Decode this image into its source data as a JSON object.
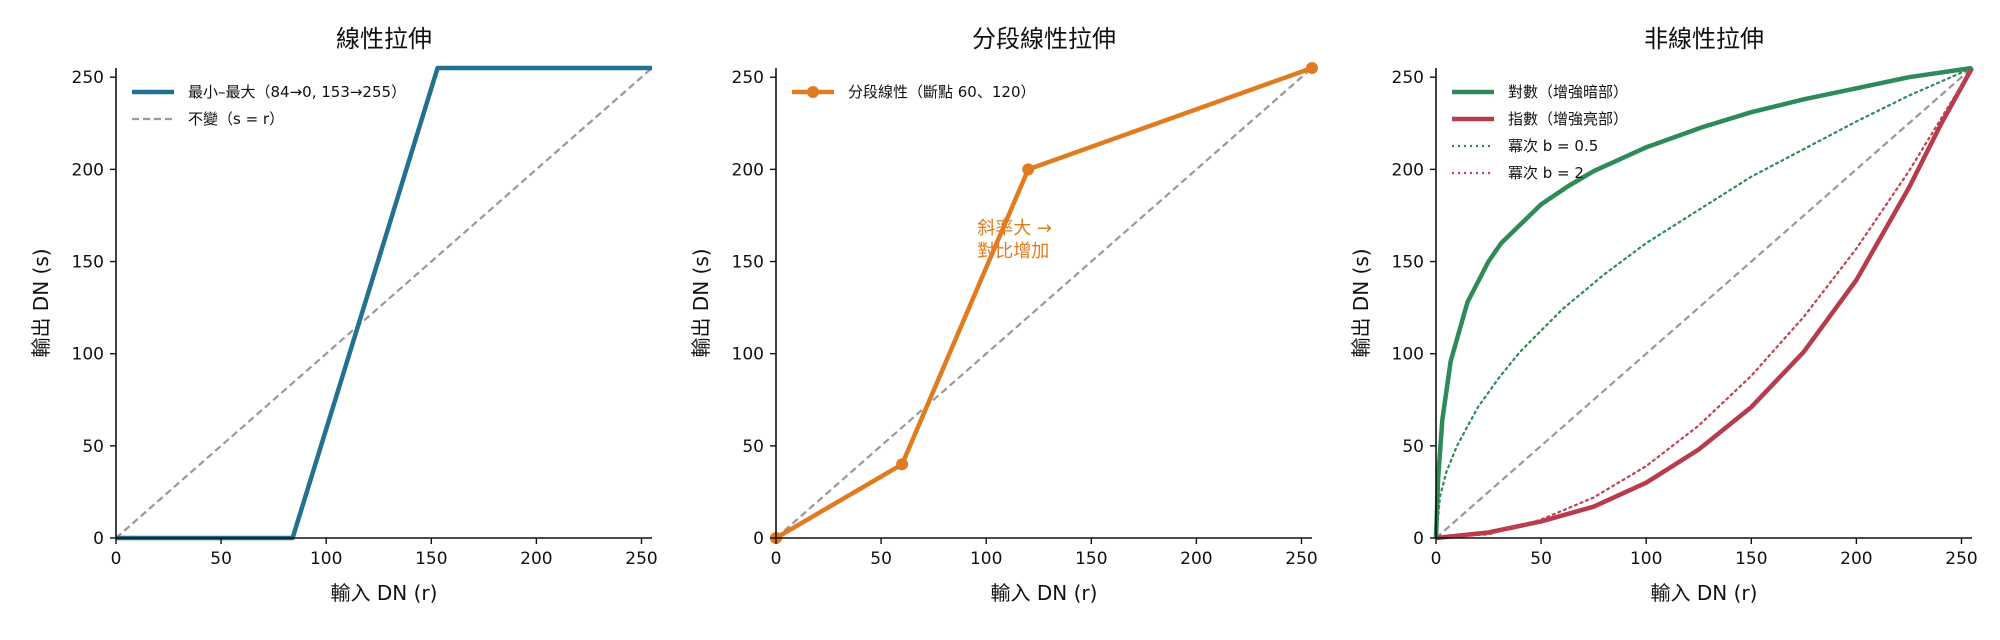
{
  "chart_data": [
    {
      "type": "line",
      "title": "線性拉伸",
      "xlabel": "輸入 DN (r)",
      "ylabel": "輸出 DN (s)",
      "xlim": [
        0,
        255
      ],
      "ylim": [
        0,
        255
      ],
      "xticks": [
        "0",
        "50",
        "100",
        "150",
        "200",
        "250"
      ],
      "yticks": [
        "0",
        "50",
        "100",
        "150",
        "200",
        "250"
      ],
      "legend": "top-left",
      "grid": false,
      "series": [
        {
          "name": "最小–最大（84→0, 153→255）",
          "color": "#21718f",
          "style": "solid",
          "points": [
            [
              0,
              0
            ],
            [
              84,
              0
            ],
            [
              153,
              255
            ],
            [
              255,
              255
            ]
          ]
        },
        {
          "name": "不變（s = r）",
          "color": "#999999",
          "style": "dashed",
          "points": [
            [
              0,
              0
            ],
            [
              255,
              255
            ]
          ]
        }
      ]
    },
    {
      "type": "line",
      "title": "分段線性拉伸",
      "xlabel": "輸入 DN (r)",
      "ylabel": "輸出 DN (s)",
      "xlim": [
        0,
        255
      ],
      "ylim": [
        0,
        255
      ],
      "xticks": [
        "0",
        "50",
        "100",
        "150",
        "200",
        "250"
      ],
      "yticks": [
        "0",
        "50",
        "100",
        "150",
        "200",
        "250"
      ],
      "legend": "top-left",
      "grid": false,
      "series": [
        {
          "name": "分段線性（斷點 60、120）",
          "color": "#e07b22",
          "style": "solid",
          "markers": true,
          "points": [
            [
              0,
              0
            ],
            [
              60,
              40
            ],
            [
              120,
              200
            ],
            [
              255,
              255
            ]
          ]
        },
        {
          "color": "#999999",
          "style": "dashed",
          "points": [
            [
              0,
              0
            ],
            [
              255,
              255
            ]
          ]
        }
      ],
      "annotation": {
        "lines": [
          "斜率大 →",
          "對比增加"
        ],
        "color": "#e07b22",
        "x": 110,
        "y": 165
      }
    },
    {
      "type": "line",
      "title": "非線性拉伸",
      "xlabel": "輸入 DN (r)",
      "ylabel": "輸出 DN (s)",
      "xlim": [
        0,
        255
      ],
      "ylim": [
        0,
        255
      ],
      "xticks": [
        "0",
        "50",
        "100",
        "150",
        "200",
        "250"
      ],
      "yticks": [
        "0",
        "50",
        "100",
        "150",
        "200",
        "250"
      ],
      "legend": "top-left",
      "grid": false,
      "series": [
        {
          "name": "對數（增強暗部）",
          "color": "#2e8b57",
          "style": "solid",
          "points": [
            [
              0,
              0
            ],
            [
              1,
              32
            ],
            [
              3,
              64
            ],
            [
              7,
              96
            ],
            [
              15,
              128
            ],
            [
              25,
              150
            ],
            [
              31,
              160
            ],
            [
              50,
              181
            ],
            [
              63,
              191
            ],
            [
              75,
              199
            ],
            [
              100,
              212
            ],
            [
              127,
              223
            ],
            [
              150,
              231
            ],
            [
              175,
              238
            ],
            [
              200,
              244
            ],
            [
              225,
              250
            ],
            [
              255,
              255
            ]
          ]
        },
        {
          "name": "指數（增強亮部）",
          "color": "#b63b4d",
          "style": "solid",
          "points": [
            [
              0,
              0
            ],
            [
              25,
              3
            ],
            [
              50,
              9
            ],
            [
              75,
              17
            ],
            [
              100,
              30
            ],
            [
              125,
              48
            ],
            [
              150,
              71
            ],
            [
              175,
              101
            ],
            [
              200,
              140
            ],
            [
              225,
              190
            ],
            [
              240,
              224
            ],
            [
              255,
              255
            ]
          ]
        },
        {
          "name": "冪次 b = 0.5",
          "color": "#2e8b57",
          "style": "dotted",
          "points": [
            [
              0,
              0
            ],
            [
              2,
              23
            ],
            [
              5,
              36
            ],
            [
              10,
              50
            ],
            [
              20,
              71
            ],
            [
              30,
              87
            ],
            [
              40,
              101
            ],
            [
              60,
              124
            ],
            [
              80,
              143
            ],
            [
              100,
              160
            ],
            [
              125,
              178
            ],
            [
              150,
              196
            ],
            [
              175,
              211
            ],
            [
              200,
              226
            ],
            [
              225,
              240
            ],
            [
              255,
              255
            ]
          ]
        },
        {
          "name": "冪次 b = 2",
          "color": "#c0434f",
          "style": "dotted",
          "points": [
            [
              0,
              0
            ],
            [
              25,
              2
            ],
            [
              50,
              10
            ],
            [
              75,
              22
            ],
            [
              100,
              39
            ],
            [
              125,
              61
            ],
            [
              150,
              88
            ],
            [
              175,
              120
            ],
            [
              200,
              157
            ],
            [
              225,
              199
            ],
            [
              255,
              255
            ]
          ]
        },
        {
          "color": "#999999",
          "style": "dashed",
          "points": [
            [
              0,
              0
            ],
            [
              255,
              255
            ]
          ]
        }
      ]
    }
  ]
}
